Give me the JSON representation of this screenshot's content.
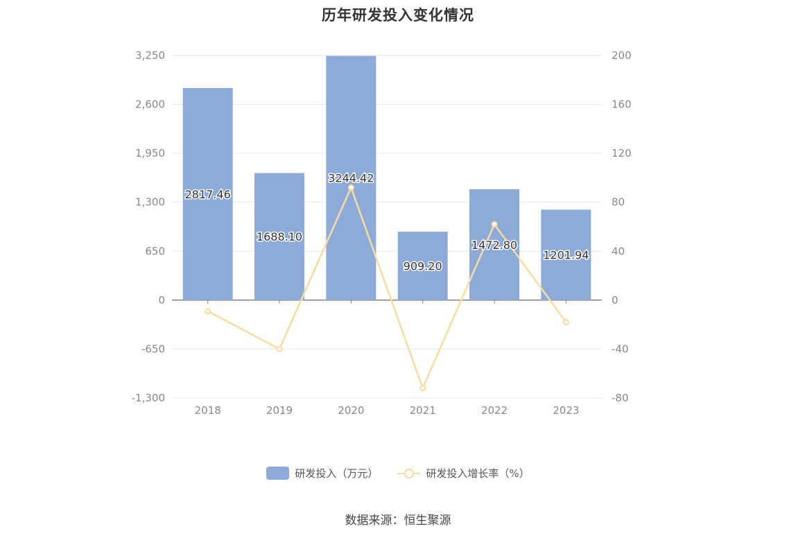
{
  "chart_data": {
    "type": "bar",
    "title": "历年研发投入变化情况",
    "categories": [
      "2018",
      "2019",
      "2020",
      "2021",
      "2022",
      "2023"
    ],
    "series": [
      {
        "name": "研发投入（万元）",
        "type": "bar",
        "axis": "left",
        "color": "#8dabd9",
        "values": [
          2817.46,
          1688.1,
          3244.42,
          909.2,
          1472.8,
          1201.94
        ],
        "labels": [
          "2817.46",
          "1688.10",
          "3244.42",
          "909.20",
          "1472.80",
          "1201.94"
        ]
      },
      {
        "name": "研发投入增长率（%）",
        "type": "line",
        "axis": "right",
        "color": "#fbdba0",
        "values": [
          -9,
          -40,
          92,
          -72,
          62,
          -18
        ]
      }
    ],
    "y_left": {
      "min": -1300,
      "max": 3250,
      "ticks": [
        3250,
        2600,
        1950,
        1300,
        650,
        0,
        -650,
        -1300
      ],
      "tick_labels": [
        "3,250",
        "2,600",
        "1,950",
        "1,300",
        "650",
        "0",
        "-650",
        "-1,300"
      ]
    },
    "y_right": {
      "min": -80,
      "max": 200,
      "ticks": [
        200,
        160,
        120,
        80,
        40,
        0,
        -40,
        -80
      ],
      "tick_labels": [
        "200",
        "160",
        "120",
        "80",
        "40",
        "0",
        "-40",
        "-80"
      ]
    },
    "grid": true,
    "legend_position": "bottom"
  },
  "legend": {
    "bar_label": "研发投入（万元）",
    "line_label": "研发投入增长率（%）"
  },
  "source": "数据来源：恒生聚源"
}
